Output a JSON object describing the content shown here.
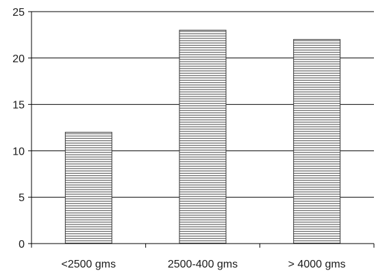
{
  "chart_data": {
    "type": "bar",
    "categories": [
      "<2500 gms",
      "2500-400 gms",
      "> 4000 gms"
    ],
    "values": [
      12,
      23,
      22
    ],
    "title": "",
    "xlabel": "",
    "ylabel": "",
    "ylim": [
      0,
      25
    ],
    "yticks": [
      "0",
      "5",
      "10",
      "15",
      "20",
      "25"
    ],
    "grid": true,
    "legend": "none",
    "bar_fill": "horizontal-hatch",
    "colors": {
      "bar_fill": "#ffffff",
      "hatch": "#333333",
      "grid": "#000000",
      "axis": "#000000"
    }
  }
}
